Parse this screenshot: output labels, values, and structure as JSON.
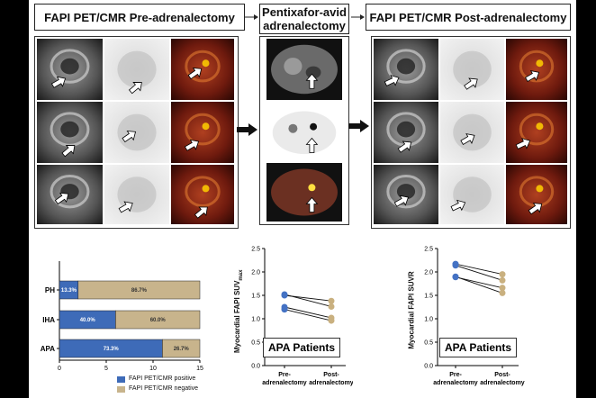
{
  "colors": {
    "positive": "#3e6bb8",
    "negative": "#c8b48c",
    "marker_blue": "#4472c4",
    "marker_tan": "#c9b07f"
  },
  "headers": {
    "pre": "FAPI PET/CMR Pre-adrenalectomy",
    "mid": "Pentixafor-avid adrenalectomy",
    "post": "FAPI PET/CMR Post-adrenalectomy"
  },
  "bar_chart": {
    "legend_positive": "FAPI PET/CMR positive",
    "legend_negative": "FAPI PET/CMR negative"
  },
  "scatter1": {
    "box_label": "APA Patients",
    "ylabel": "Myocardial FAPI SUV",
    "ylabel_sub": "max"
  },
  "scatter2": {
    "box_label": "APA Patients",
    "ylabel": "Myocardial FAPI SUVR"
  },
  "chart_data": [
    {
      "type": "bar",
      "orientation": "horizontal",
      "stacked": true,
      "categories": [
        "PH",
        "IHA",
        "APA"
      ],
      "series": [
        {
          "name": "FAPI PET/CMR positive",
          "values": [
            2,
            6,
            11
          ],
          "labels": [
            "13.3%",
            "40.0%",
            "73.3%"
          ]
        },
        {
          "name": "FAPI PET/CMR negative",
          "values": [
            13,
            9,
            4
          ],
          "labels": [
            "86.7%",
            "60.0%",
            "26.7%"
          ]
        }
      ],
      "xlim": [
        0,
        15
      ],
      "xticks": [
        "0",
        "5",
        "10",
        "15"
      ]
    },
    {
      "type": "scatter",
      "title": "APA Patients",
      "ylabel": "Myocardial FAPI SUVmax",
      "categories": [
        "Pre-\nadrenalectomy",
        "Post-\nadrenalectomy"
      ],
      "pairs": [
        [
          1.5,
          1.38
        ],
        [
          1.25,
          1.02
        ],
        [
          1.2,
          0.96
        ],
        [
          1.52,
          1.26
        ]
      ],
      "ylim": [
        0,
        2.5
      ],
      "yticks": [
        "0.0",
        "0.5",
        "1.0",
        "1.5",
        "2.0",
        "2.5"
      ]
    },
    {
      "type": "scatter",
      "title": "APA Patients",
      "ylabel": "Myocardial FAPI SUVR",
      "categories": [
        "Pre-\nadrenalectomy",
        "Post-\nadrenalectomy"
      ],
      "pairs": [
        [
          2.17,
          1.95
        ],
        [
          2.14,
          1.82
        ],
        [
          1.89,
          1.66
        ],
        [
          1.9,
          1.55
        ]
      ],
      "ylim": [
        0,
        2.5
      ],
      "yticks": [
        "0.0",
        "0.5",
        "1.0",
        "1.5",
        "2.0",
        "2.5"
      ]
    }
  ]
}
